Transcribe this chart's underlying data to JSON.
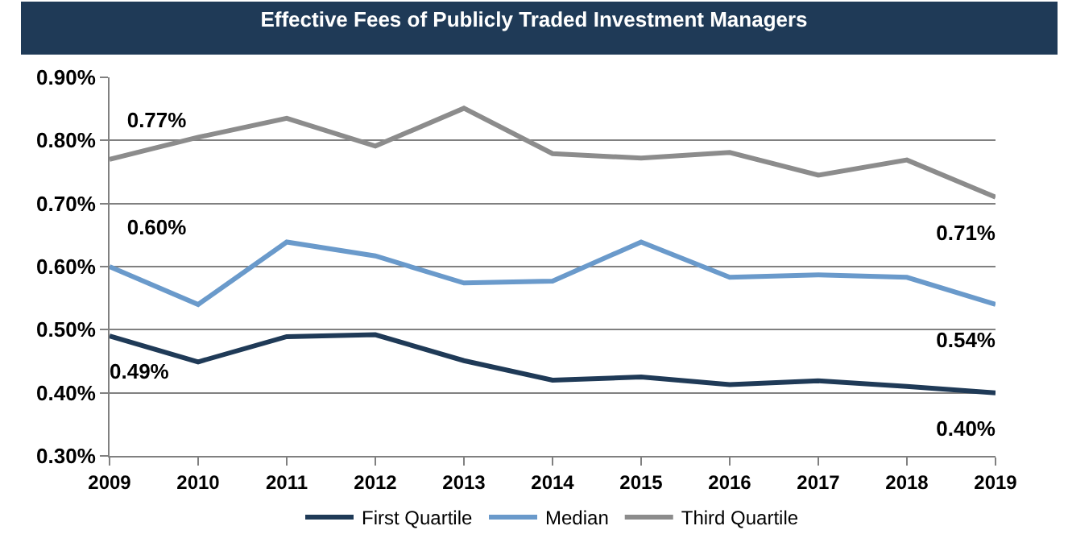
{
  "chart_data": {
    "type": "line",
    "title": "Effective Fees of Publicly Traded Investment Managers",
    "categories": [
      "2009",
      "2010",
      "2011",
      "2012",
      "2013",
      "2014",
      "2015",
      "2016",
      "2017",
      "2018",
      "2019"
    ],
    "series": [
      {
        "name": "First Quartile",
        "color": "#1f3a57",
        "values": [
          0.49,
          0.449,
          0.489,
          0.492,
          0.451,
          0.42,
          0.425,
          0.413,
          0.419,
          0.41,
          0.4
        ],
        "value_labels": [
          "0.49%",
          null,
          null,
          null,
          null,
          null,
          null,
          null,
          null,
          null,
          "0.40%"
        ]
      },
      {
        "name": "Median",
        "color": "#6a9acb",
        "values": [
          0.6,
          0.54,
          0.639,
          0.617,
          0.574,
          0.577,
          0.639,
          0.583,
          0.587,
          0.583,
          0.54
        ],
        "value_labels": [
          "0.60%",
          null,
          null,
          null,
          null,
          null,
          null,
          null,
          null,
          null,
          "0.54%"
        ]
      },
      {
        "name": "Third Quartile",
        "color": "#8c8c8c",
        "values": [
          0.77,
          0.805,
          0.835,
          0.791,
          0.851,
          0.779,
          0.772,
          0.781,
          0.745,
          0.769,
          0.71
        ],
        "value_labels": [
          "0.77%",
          null,
          null,
          null,
          null,
          null,
          null,
          null,
          null,
          null,
          "0.71%"
        ]
      }
    ],
    "ylim": [
      0.3,
      0.9
    ],
    "yticks": [
      {
        "value": 0.3,
        "label": "0.30%"
      },
      {
        "value": 0.4,
        "label": "0.40%"
      },
      {
        "value": 0.5,
        "label": "0.50%"
      },
      {
        "value": 0.6,
        "label": "0.60%"
      },
      {
        "value": 0.7,
        "label": "0.70%"
      },
      {
        "value": 0.8,
        "label": "0.80%"
      },
      {
        "value": 0.9,
        "label": "0.90%"
      }
    ],
    "grid": "y",
    "legend": "bottom",
    "marker": "none",
    "line_style": "solid"
  }
}
